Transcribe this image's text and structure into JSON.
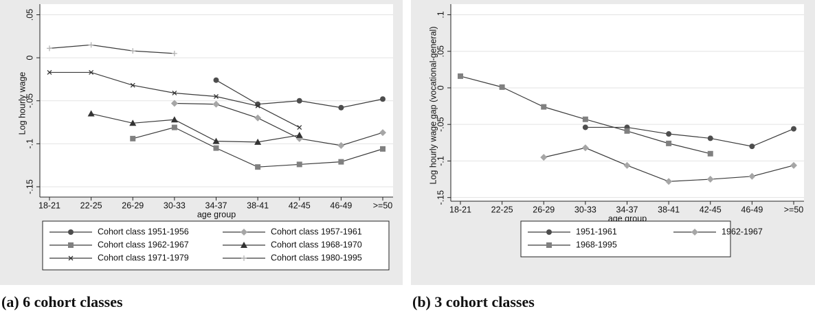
{
  "chart_data": [
    {
      "type": "line",
      "caption": "(a) 6 cohort classes",
      "ylabel": "Log hourly wage",
      "xlabel": "age group",
      "categories": [
        "18-21",
        "22-25",
        "26-29",
        "30-33",
        "34-37",
        "38-41",
        "42-45",
        "46-49",
        ">=50"
      ],
      "ylim": [
        -0.162,
        0.056
      ],
      "yticks": [
        {
          "value": -0.15,
          "label": "-.15"
        },
        {
          "value": -0.1,
          "label": "-.1"
        },
        {
          "value": -0.05,
          "label": "-.05"
        },
        0,
        {
          "value": 0.05,
          "label": ".05"
        }
      ],
      "grid": true,
      "legend": "bottom",
      "series": [
        {
          "name": "Cohort class 1951-1956",
          "color": "#4d4d4d",
          "marker": "circle",
          "values": [
            null,
            null,
            null,
            null,
            -0.026,
            -0.054,
            -0.05,
            -0.058,
            -0.048
          ]
        },
        {
          "name": "Cohort class 1957-1961",
          "color": "#a6a6a6",
          "marker": "diamond",
          "values": [
            null,
            null,
            null,
            -0.053,
            -0.054,
            -0.07,
            -0.094,
            -0.102,
            -0.087
          ]
        },
        {
          "name": "Cohort class 1962-1967",
          "color": "#808080",
          "marker": "square",
          "values": [
            null,
            null,
            -0.094,
            -0.081,
            -0.105,
            -0.127,
            -0.124,
            -0.121,
            -0.106
          ]
        },
        {
          "name": "Cohort class 1968-1970",
          "color": "#333333",
          "marker": "triangle",
          "values": [
            null,
            -0.065,
            -0.076,
            -0.072,
            -0.097,
            -0.098,
            -0.09,
            null,
            null
          ]
        },
        {
          "name": "Cohort class 1971-1979",
          "color": "#333333",
          "marker": "x",
          "values": [
            -0.017,
            -0.017,
            -0.032,
            -0.041,
            -0.045,
            -0.056,
            -0.081,
            null,
            null
          ]
        },
        {
          "name": "Cohort class 1980-1995",
          "color": "#b3b3b3",
          "marker": "plus",
          "values": [
            0.011,
            0.015,
            0.008,
            0.005,
            null,
            null,
            null,
            null,
            null
          ]
        }
      ]
    },
    {
      "type": "line",
      "caption": "(b) 3 cohort classes",
      "ylabel": "Log hourly wage gap (vocational-general)",
      "xlabel": "age group",
      "categories": [
        "18-21",
        "22-25",
        "26-29",
        "30-33",
        "34-37",
        "38-41",
        "42-45",
        "46-49",
        ">=50"
      ],
      "ylim": [
        -0.155,
        0.107
      ],
      "yticks": [
        {
          "value": -0.15,
          "label": "-.15"
        },
        {
          "value": -0.1,
          "label": "-.1"
        },
        {
          "value": -0.05,
          "label": "-.05"
        },
        0,
        {
          "value": 0.05,
          "label": ".05"
        },
        {
          "value": 0.1,
          "label": ".1"
        }
      ],
      "grid": true,
      "legend": "bottom",
      "series": [
        {
          "name": "1951-1961",
          "color": "#4d4d4d",
          "marker": "circle",
          "values": [
            null,
            null,
            null,
            -0.054,
            -0.054,
            -0.063,
            -0.069,
            -0.08,
            -0.056
          ]
        },
        {
          "name": "1962-1967",
          "color": "#a6a6a6",
          "marker": "diamond",
          "values": [
            null,
            null,
            -0.095,
            -0.082,
            -0.106,
            -0.128,
            -0.125,
            -0.121,
            -0.106
          ]
        },
        {
          "name": "1968-1995",
          "color": "#808080",
          "marker": "square",
          "values": [
            0.016,
            0.001,
            -0.026,
            -0.043,
            -0.059,
            -0.076,
            -0.09,
            null,
            null
          ]
        }
      ]
    }
  ]
}
